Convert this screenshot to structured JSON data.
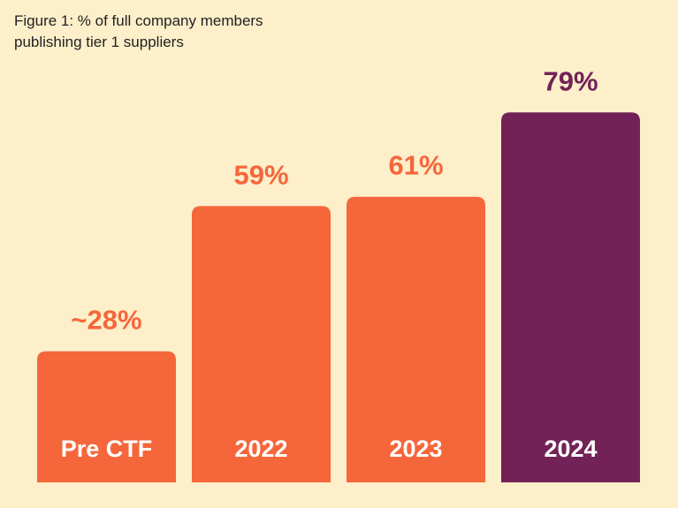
{
  "figure": {
    "title_line1": "Figure 1: % of full company members",
    "title_line2": "publishing tier 1 suppliers"
  },
  "colors": {
    "background": "#fcefca",
    "bar_default": "#f6663b",
    "bar_highlight": "#722257",
    "label_default": "#f6663b",
    "label_highlight": "#722257"
  },
  "chart_data": {
    "type": "bar",
    "title": "Figure 1: % of full company members publishing tier 1 suppliers",
    "categories": [
      "Pre CTF",
      "2022",
      "2023",
      "2024"
    ],
    "values": [
      28,
      59,
      61,
      79
    ],
    "value_labels": [
      "~28%",
      "59%",
      "61%",
      "79%"
    ],
    "highlight_index": 3,
    "xlabel": "",
    "ylabel": "",
    "ylim": [
      0,
      80
    ],
    "grid": false,
    "legend": "none"
  }
}
